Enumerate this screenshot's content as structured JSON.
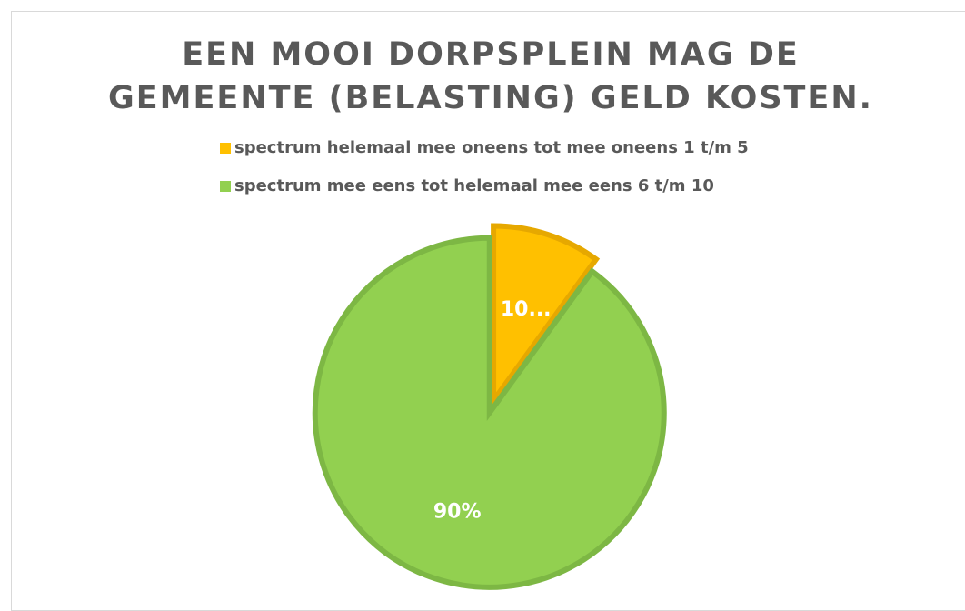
{
  "chart_data": {
    "type": "pie",
    "title": "EEN MOOI DORPSPLEIN MAG DE GEMEENTE (BELASTING) GELD KOSTEN.",
    "categories": [
      "spectrum helemaal mee oneens tot mee oneens 1 t/m 5",
      "spectrum mee eens tot helemaal mee eens 6 t/m 10"
    ],
    "values": [
      10,
      90
    ],
    "value_labels": [
      "10...",
      "90%"
    ],
    "colors": [
      "#FFC000",
      "#92D050"
    ]
  }
}
